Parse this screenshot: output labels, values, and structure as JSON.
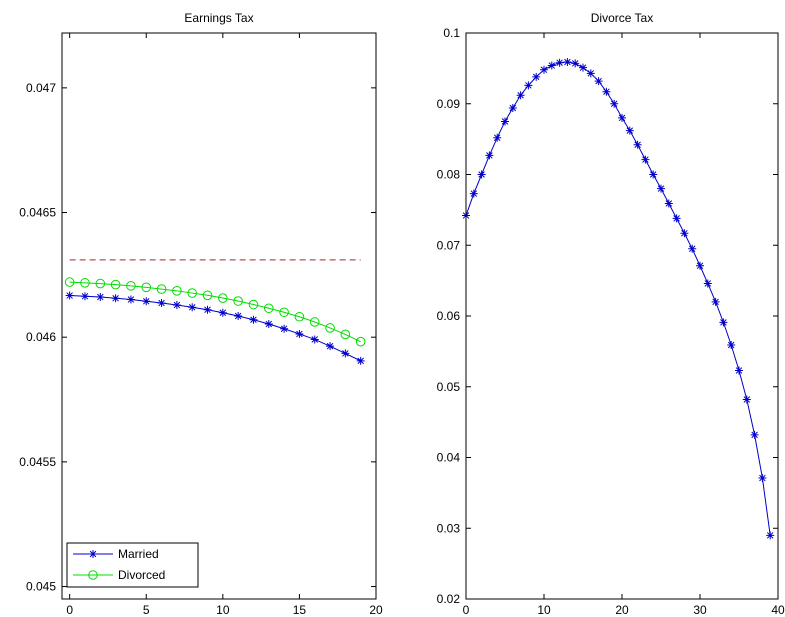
{
  "chart_data": [
    {
      "type": "line",
      "title": "Earnings Tax",
      "xlabel": "",
      "ylabel": "",
      "xlim": [
        -0.5,
        20
      ],
      "ylim": [
        0.04495,
        0.04722
      ],
      "xticks": [
        0,
        5,
        10,
        15,
        20
      ],
      "xtick_labels": [
        "0",
        "5",
        "10",
        "15",
        "20"
      ],
      "yticks": [
        0.045,
        0.0455,
        0.046,
        0.0465,
        0.047
      ],
      "ytick_labels": [
        "0.045",
        "0.0455",
        "0.046",
        "0.0465",
        "0.047"
      ],
      "grid": false,
      "legend": "bottom-left",
      "reference_line": {
        "y": 0.04631,
        "style": "dashed",
        "color": "#a52a2a"
      },
      "x": [
        0,
        1,
        2,
        3,
        4,
        5,
        6,
        7,
        8,
        9,
        10,
        11,
        12,
        13,
        14,
        15,
        16,
        17,
        18,
        19
      ],
      "series": [
        {
          "name": "Married",
          "marker": "star",
          "color": "#0000cc",
          "values": [
            0.046167,
            0.046164,
            0.046161,
            0.046156,
            0.046151,
            0.046144,
            0.046137,
            0.046129,
            0.04612,
            0.04611,
            0.046098,
            0.046085,
            0.04607,
            0.046053,
            0.046034,
            0.046013,
            0.045991,
            0.045964,
            0.045935,
            0.045905
          ]
        },
        {
          "name": "Divorced",
          "marker": "circle",
          "color": "#00dd00",
          "values": [
            0.046221,
            0.046218,
            0.046215,
            0.046211,
            0.046206,
            0.0462,
            0.046193,
            0.046186,
            0.046177,
            0.046168,
            0.046157,
            0.046145,
            0.046131,
            0.046116,
            0.0461,
            0.046082,
            0.046061,
            0.046037,
            0.046011,
            0.045982
          ]
        }
      ]
    },
    {
      "type": "line",
      "title": "Divorce Tax",
      "xlabel": "",
      "ylabel": "",
      "xlim": [
        0,
        40
      ],
      "ylim": [
        0.02,
        0.1
      ],
      "xticks": [
        0,
        10,
        20,
        30,
        40
      ],
      "xtick_labels": [
        "0",
        "10",
        "20",
        "30",
        "40"
      ],
      "yticks": [
        0.02,
        0.03,
        0.04,
        0.05,
        0.06,
        0.07,
        0.08,
        0.09,
        0.1
      ],
      "ytick_labels": [
        "0.02",
        "0.03",
        "0.04",
        "0.05",
        "0.06",
        "0.07",
        "0.08",
        "0.09",
        "0.1"
      ],
      "grid": false,
      "x": [
        0,
        1,
        2,
        3,
        4,
        5,
        6,
        7,
        8,
        9,
        10,
        11,
        12,
        13,
        14,
        15,
        16,
        17,
        18,
        19,
        20,
        21,
        22,
        23,
        24,
        25,
        26,
        27,
        28,
        29,
        30,
        31,
        32,
        33,
        34,
        35,
        36,
        37,
        38,
        39
      ],
      "series": [
        {
          "marker": "star",
          "color": "#0000cc",
          "values": [
            0.0742,
            0.0773,
            0.08,
            0.0827,
            0.0852,
            0.0875,
            0.0894,
            0.0912,
            0.0926,
            0.0938,
            0.0948,
            0.0954,
            0.0958,
            0.0959,
            0.0957,
            0.0951,
            0.0943,
            0.0932,
            0.0917,
            0.09,
            0.088,
            0.0862,
            0.0842,
            0.0821,
            0.08,
            0.078,
            0.0759,
            0.0738,
            0.0717,
            0.0695,
            0.0671,
            0.0646,
            0.062,
            0.0591,
            0.0559,
            0.0523,
            0.0482,
            0.0432,
            0.0371,
            0.029
          ]
        }
      ]
    }
  ]
}
